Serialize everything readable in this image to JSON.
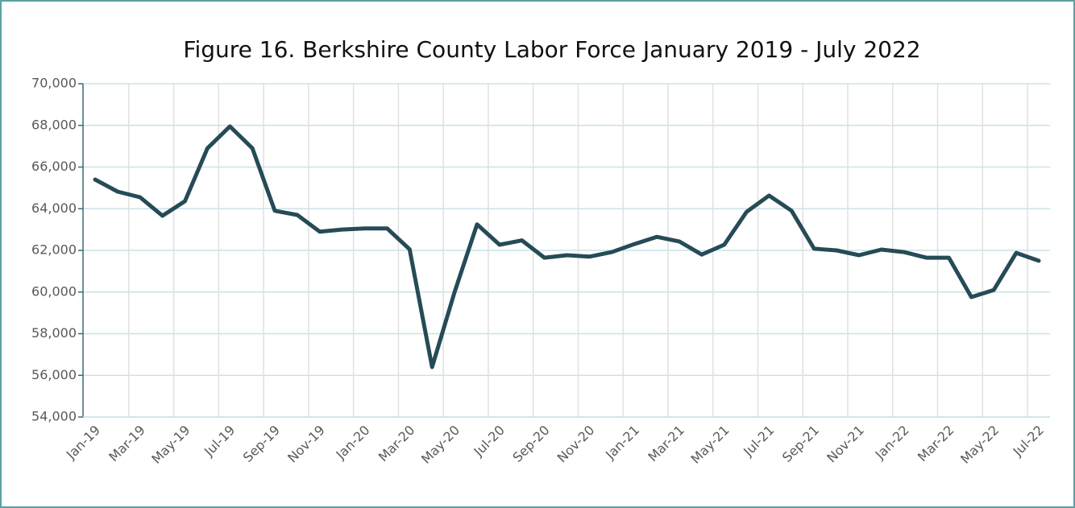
{
  "chart_data": {
    "type": "line",
    "title": "Figure 16. Berkshire County Labor Force January 2019 - July 2022",
    "categories": [
      "Jan-19",
      null,
      "Mar-19",
      null,
      "May-19",
      null,
      "Jul-19",
      null,
      "Sep-19",
      null,
      "Nov-19",
      null,
      "Jan-20",
      null,
      "Mar-20",
      null,
      "May-20",
      null,
      "Jul-20",
      null,
      "Sep-20",
      null,
      "Nov-20",
      null,
      "Jan-21",
      null,
      "Mar-21",
      null,
      "May-21",
      null,
      "Jul-21",
      null,
      "Sep-21",
      null,
      "Nov-21",
      null,
      "Jan-22",
      null,
      "Mar-22",
      null,
      "May-22",
      null,
      "Jul-22"
    ],
    "series": [
      {
        "name": "Labor Force",
        "color": "#264b57",
        "values": [
          65400,
          64820,
          64550,
          63660,
          64360,
          66900,
          67950,
          66900,
          63900,
          63700,
          62900,
          63000,
          63050,
          63050,
          62050,
          56400,
          60000,
          63250,
          62270,
          62480,
          61650,
          61770,
          61700,
          61920,
          62300,
          62650,
          62430,
          61800,
          62270,
          63850,
          64630,
          63900,
          62080,
          62000,
          61770,
          62040,
          61920,
          61650,
          61650,
          59760,
          60100,
          61880,
          61500
        ]
      }
    ],
    "ylim": [
      54000,
      70000
    ],
    "yticks": [
      {
        "value": 54000,
        "label": "54,000"
      },
      {
        "value": 56000,
        "label": "56,000"
      },
      {
        "value": 58000,
        "label": "58,000"
      },
      {
        "value": 60000,
        "label": "60,000"
      },
      {
        "value": 62000,
        "label": "62,000"
      },
      {
        "value": 64000,
        "label": "64,000"
      },
      {
        "value": 66000,
        "label": "66,000"
      },
      {
        "value": 68000,
        "label": "68,000"
      },
      {
        "value": 70000,
        "label": "70,000"
      }
    ],
    "grid": true
  }
}
